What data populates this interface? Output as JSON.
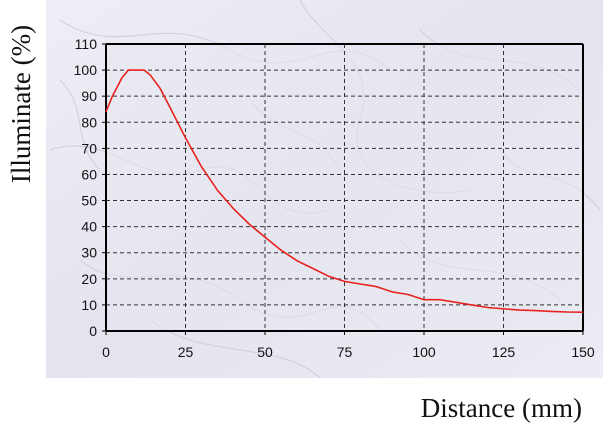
{
  "chart_data": {
    "type": "line",
    "title": "",
    "xlabel": "Distance (mm)",
    "ylabel": "Illuminate (%)",
    "xlim": [
      0,
      150
    ],
    "ylim": [
      0,
      110
    ],
    "xticks": [
      0,
      25,
      50,
      75,
      100,
      125,
      150
    ],
    "yticks": [
      0,
      10,
      20,
      30,
      40,
      50,
      60,
      70,
      80,
      90,
      100,
      110
    ],
    "grid": true,
    "legend": "none",
    "colors": {
      "line": "#e8231e",
      "background": "#e6e6f0",
      "grid": "#333333",
      "axis": "#000000"
    },
    "series": [
      {
        "x": [
          0,
          2,
          5,
          7,
          12,
          14,
          17,
          20,
          25,
          30,
          35,
          40,
          45,
          50,
          55,
          60,
          65,
          70,
          75,
          80,
          85,
          90,
          95,
          100,
          105,
          110,
          115,
          120,
          125,
          130,
          135,
          140,
          145,
          150
        ],
        "values": [
          84,
          90,
          97,
          100,
          100,
          98,
          93,
          86,
          74,
          63,
          54,
          47,
          41,
          36,
          31,
          27,
          24,
          21,
          19,
          18,
          17,
          15,
          14,
          12,
          12,
          11,
          10,
          9,
          8.5,
          8,
          7.8,
          7.5,
          7.3,
          7.2
        ]
      }
    ]
  }
}
